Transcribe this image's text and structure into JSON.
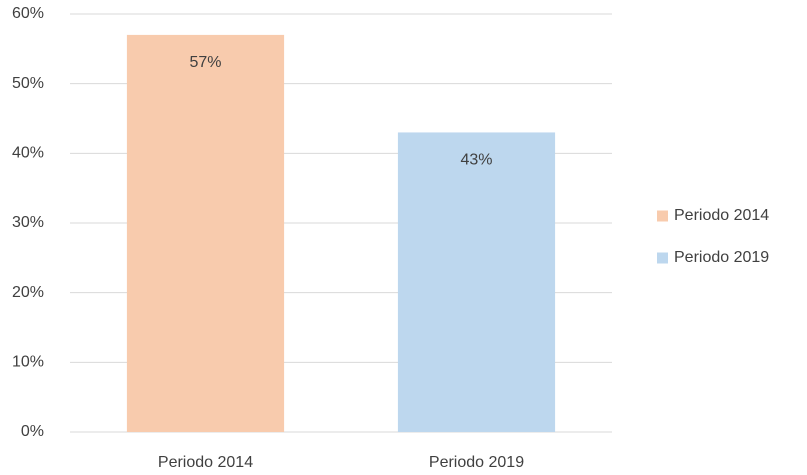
{
  "chart_data": {
    "type": "bar",
    "categories": [
      "Periodo 2014",
      "Periodo 2019"
    ],
    "values": [
      57,
      43
    ],
    "value_labels": [
      "57%",
      "43%"
    ],
    "colors": [
      "#f8cbad",
      "#bdd7ee"
    ],
    "ylim": [
      0,
      60
    ],
    "yticks": [
      {
        "value": 0,
        "label": "0%"
      },
      {
        "value": 10,
        "label": "10%"
      },
      {
        "value": 20,
        "label": "20%"
      },
      {
        "value": 30,
        "label": "30%"
      },
      {
        "value": 40,
        "label": "40%"
      },
      {
        "value": 50,
        "label": "50%"
      },
      {
        "value": 60,
        "label": "60%"
      }
    ],
    "grid": true,
    "legend": "right"
  }
}
